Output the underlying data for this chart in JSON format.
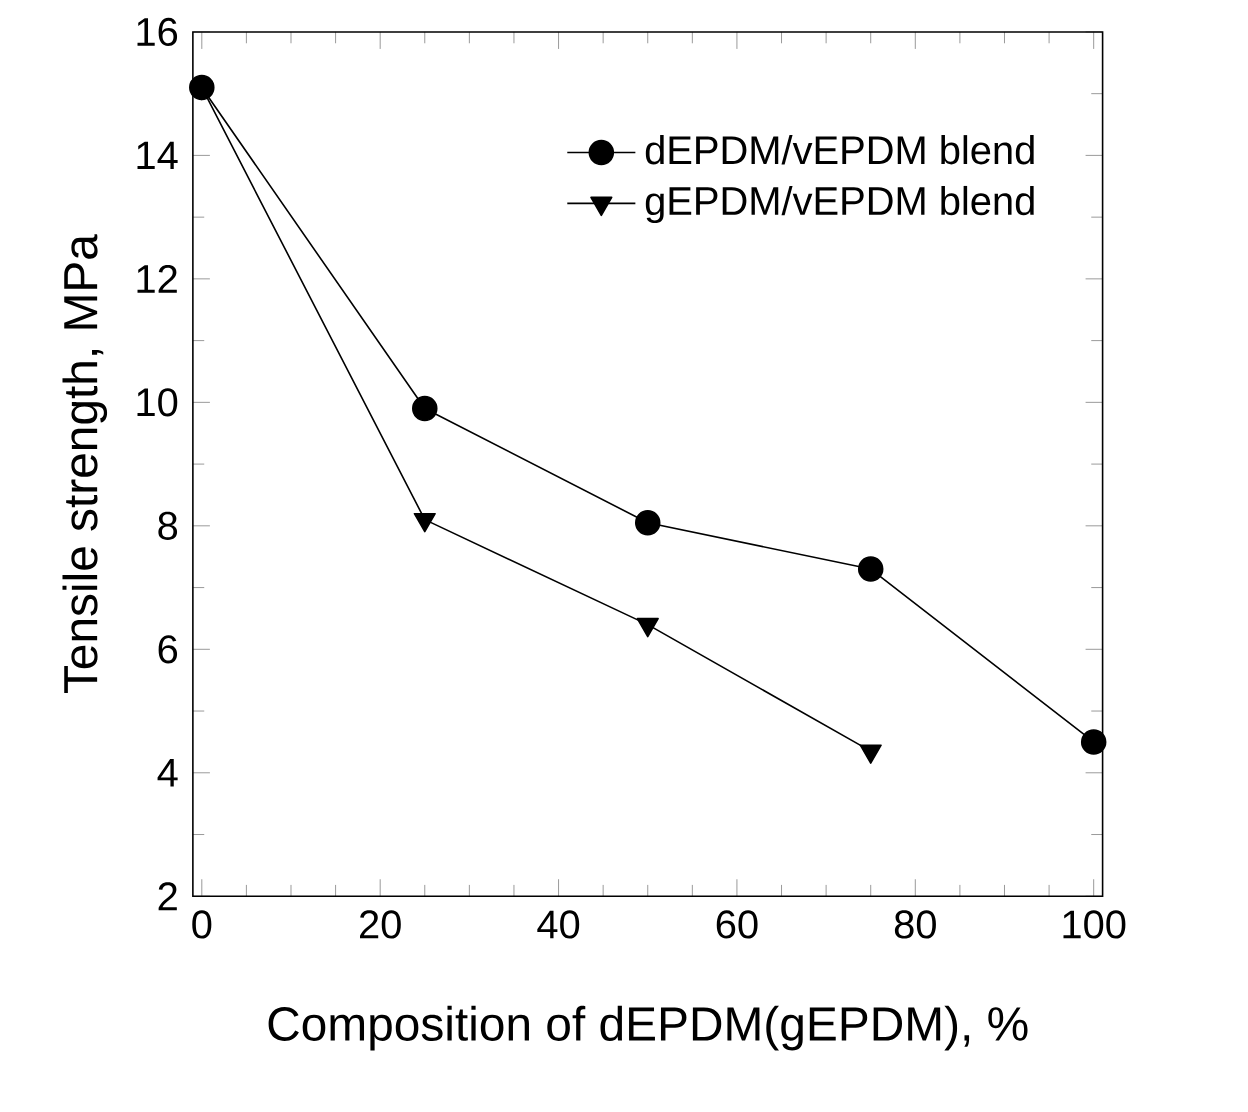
{
  "chart_data": {
    "type": "line",
    "xlabel": "Composition of dEPDM(gEPDM), %",
    "ylabel": "Tensile strength, MPa",
    "x": [
      0,
      25,
      50,
      75,
      100
    ],
    "series": [
      {
        "name": "dEPDM/vEPDM blend",
        "color": "#000000",
        "marker": "circle",
        "values": [
          15.1,
          9.9,
          8.05,
          7.3,
          4.5
        ]
      },
      {
        "name": "gEPDM/vEPDM blend",
        "color": "#000000",
        "marker": "triangle",
        "values": [
          15.1,
          8.1,
          6.4,
          4.35,
          null
        ]
      }
    ],
    "xlim": [
      -1,
      101
    ],
    "ylim": [
      2,
      16
    ],
    "xticks": [
      0,
      20,
      40,
      60,
      80,
      100
    ],
    "yticks": [
      2,
      4,
      6,
      8,
      10,
      12,
      14,
      16
    ],
    "legend": "top right",
    "line_style": "solid",
    "grid": false
  }
}
